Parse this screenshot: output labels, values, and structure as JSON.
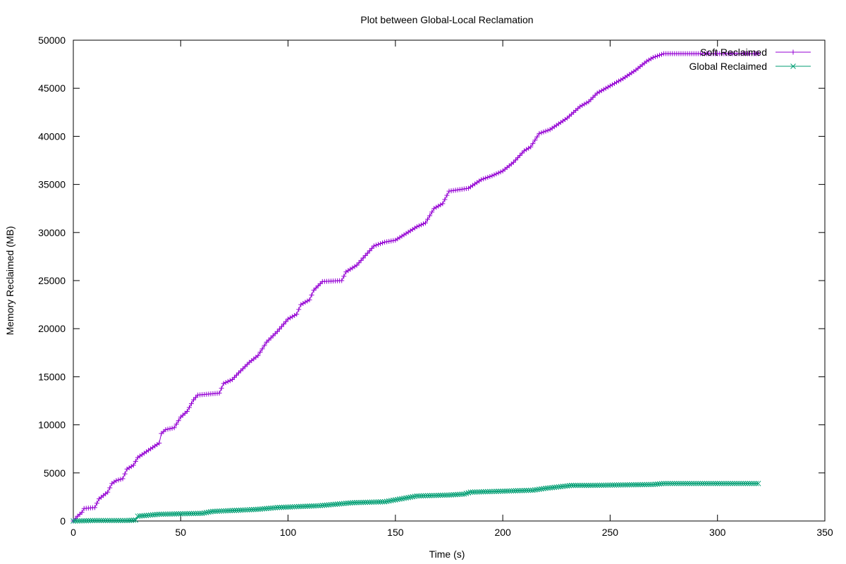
{
  "chart_data": {
    "type": "line",
    "title": "Plot between Global-Local Reclamation",
    "xlabel": "Time (s)",
    "ylabel": "Memory Reclaimed (MB)",
    "xlim": [
      0,
      350
    ],
    "ylim": [
      0,
      50000
    ],
    "x_ticks": [
      0,
      50,
      100,
      150,
      200,
      250,
      300,
      350
    ],
    "y_ticks": [
      0,
      5000,
      10000,
      15000,
      20000,
      25000,
      30000,
      35000,
      40000,
      45000,
      50000
    ],
    "grid": false,
    "legend_position": "top-right",
    "series": [
      {
        "name": "Soft Reclaimed",
        "color": "#9400d3",
        "marker": "plus",
        "points": [
          [
            0,
            0
          ],
          [
            2,
            500
          ],
          [
            4,
            900
          ],
          [
            5,
            1300
          ],
          [
            10,
            1400
          ],
          [
            12,
            2300
          ],
          [
            16,
            3000
          ],
          [
            18,
            3900
          ],
          [
            20,
            4200
          ],
          [
            23,
            4400
          ],
          [
            25,
            5400
          ],
          [
            28,
            5800
          ],
          [
            30,
            6600
          ],
          [
            34,
            7200
          ],
          [
            38,
            7800
          ],
          [
            40,
            8100
          ],
          [
            41,
            9100
          ],
          [
            43,
            9500
          ],
          [
            47,
            9700
          ],
          [
            50,
            10800
          ],
          [
            53,
            11400
          ],
          [
            56,
            12600
          ],
          [
            58,
            13100
          ],
          [
            68,
            13300
          ],
          [
            70,
            14300
          ],
          [
            74,
            14700
          ],
          [
            77,
            15400
          ],
          [
            82,
            16500
          ],
          [
            86,
            17200
          ],
          [
            90,
            18600
          ],
          [
            95,
            19700
          ],
          [
            100,
            21000
          ],
          [
            104,
            21500
          ],
          [
            106,
            22500
          ],
          [
            110,
            23000
          ],
          [
            112,
            24000
          ],
          [
            116,
            24900
          ],
          [
            125,
            25000
          ],
          [
            127,
            25900
          ],
          [
            132,
            26600
          ],
          [
            136,
            27600
          ],
          [
            140,
            28600
          ],
          [
            145,
            29000
          ],
          [
            150,
            29200
          ],
          [
            160,
            30600
          ],
          [
            164,
            31000
          ],
          [
            168,
            32500
          ],
          [
            172,
            33000
          ],
          [
            175,
            34300
          ],
          [
            184,
            34600
          ],
          [
            190,
            35500
          ],
          [
            195,
            35900
          ],
          [
            200,
            36400
          ],
          [
            205,
            37300
          ],
          [
            210,
            38500
          ],
          [
            213,
            38900
          ],
          [
            217,
            40300
          ],
          [
            222,
            40700
          ],
          [
            230,
            41900
          ],
          [
            236,
            43100
          ],
          [
            240,
            43600
          ],
          [
            244,
            44500
          ],
          [
            248,
            45000
          ],
          [
            256,
            46000
          ],
          [
            262,
            46900
          ],
          [
            267,
            47800
          ],
          [
            270,
            48200
          ],
          [
            275,
            48600
          ],
          [
            282,
            48600
          ],
          [
            319,
            48600
          ]
        ]
      },
      {
        "name": "Global Reclaimed",
        "color": "#009e73",
        "marker": "cross",
        "points": [
          [
            0,
            0
          ],
          [
            10,
            50
          ],
          [
            25,
            50
          ],
          [
            29,
            100
          ],
          [
            30,
            500
          ],
          [
            35,
            600
          ],
          [
            40,
            700
          ],
          [
            60,
            800
          ],
          [
            65,
            1000
          ],
          [
            75,
            1100
          ],
          [
            85,
            1200
          ],
          [
            95,
            1400
          ],
          [
            105,
            1500
          ],
          [
            115,
            1600
          ],
          [
            125,
            1800
          ],
          [
            130,
            1900
          ],
          [
            145,
            2000
          ],
          [
            150,
            2200
          ],
          [
            155,
            2400
          ],
          [
            160,
            2600
          ],
          [
            175,
            2700
          ],
          [
            182,
            2800
          ],
          [
            185,
            3000
          ],
          [
            200,
            3100
          ],
          [
            214,
            3200
          ],
          [
            220,
            3400
          ],
          [
            228,
            3600
          ],
          [
            232,
            3700
          ],
          [
            240,
            3700
          ],
          [
            270,
            3800
          ],
          [
            275,
            3900
          ],
          [
            319,
            3900
          ]
        ]
      }
    ]
  }
}
